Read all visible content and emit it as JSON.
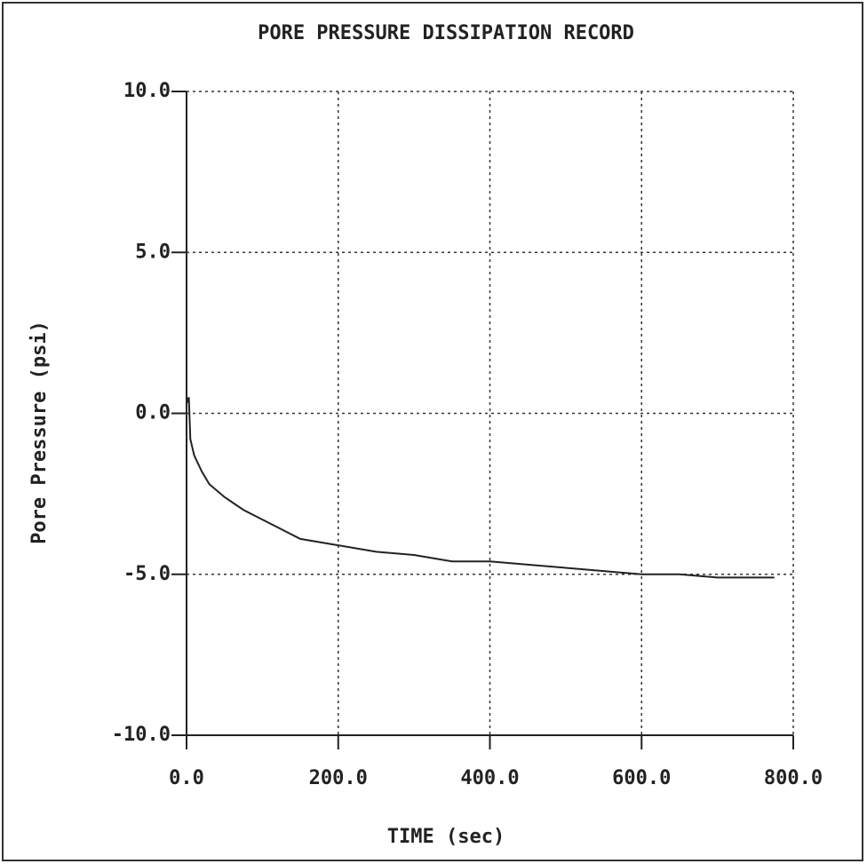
{
  "chart_data": {
    "type": "line",
    "title": "PORE PRESSURE DISSIPATION RECORD",
    "x_label": "TIME (sec)",
    "y_label": "Pore Pressure (psi)",
    "xlim": [
      0,
      800
    ],
    "ylim": [
      -10,
      10
    ],
    "xticks": [
      {
        "value": 0,
        "label": "0.0"
      },
      {
        "value": 200,
        "label": "200.0"
      },
      {
        "value": 400,
        "label": "400.0"
      },
      {
        "value": 600,
        "label": "600.0"
      },
      {
        "value": 800,
        "label": "800.0"
      }
    ],
    "yticks": [
      {
        "value": -10,
        "label": "-10.0"
      },
      {
        "value": -5,
        "label": "-5.0"
      },
      {
        "value": 0,
        "label": "0.0"
      },
      {
        "value": 5,
        "label": "5.0"
      },
      {
        "value": 10,
        "label": "10.0"
      }
    ],
    "grid": true,
    "series": [
      {
        "color": "#222222",
        "x": [
          0,
          3,
          5,
          10,
          20,
          30,
          50,
          75,
          100,
          125,
          150,
          175,
          200,
          250,
          300,
          350,
          400,
          450,
          500,
          550,
          600,
          650,
          700,
          750,
          775
        ],
        "values": [
          0.3,
          0.5,
          -0.8,
          -1.3,
          -1.8,
          -2.2,
          -2.6,
          -3.0,
          -3.3,
          -3.6,
          -3.9,
          -4.0,
          -4.1,
          -4.3,
          -4.4,
          -4.6,
          -4.6,
          -4.7,
          -4.8,
          -4.9,
          -5.0,
          -5.0,
          -5.1,
          -5.1,
          -5.1
        ]
      }
    ]
  }
}
